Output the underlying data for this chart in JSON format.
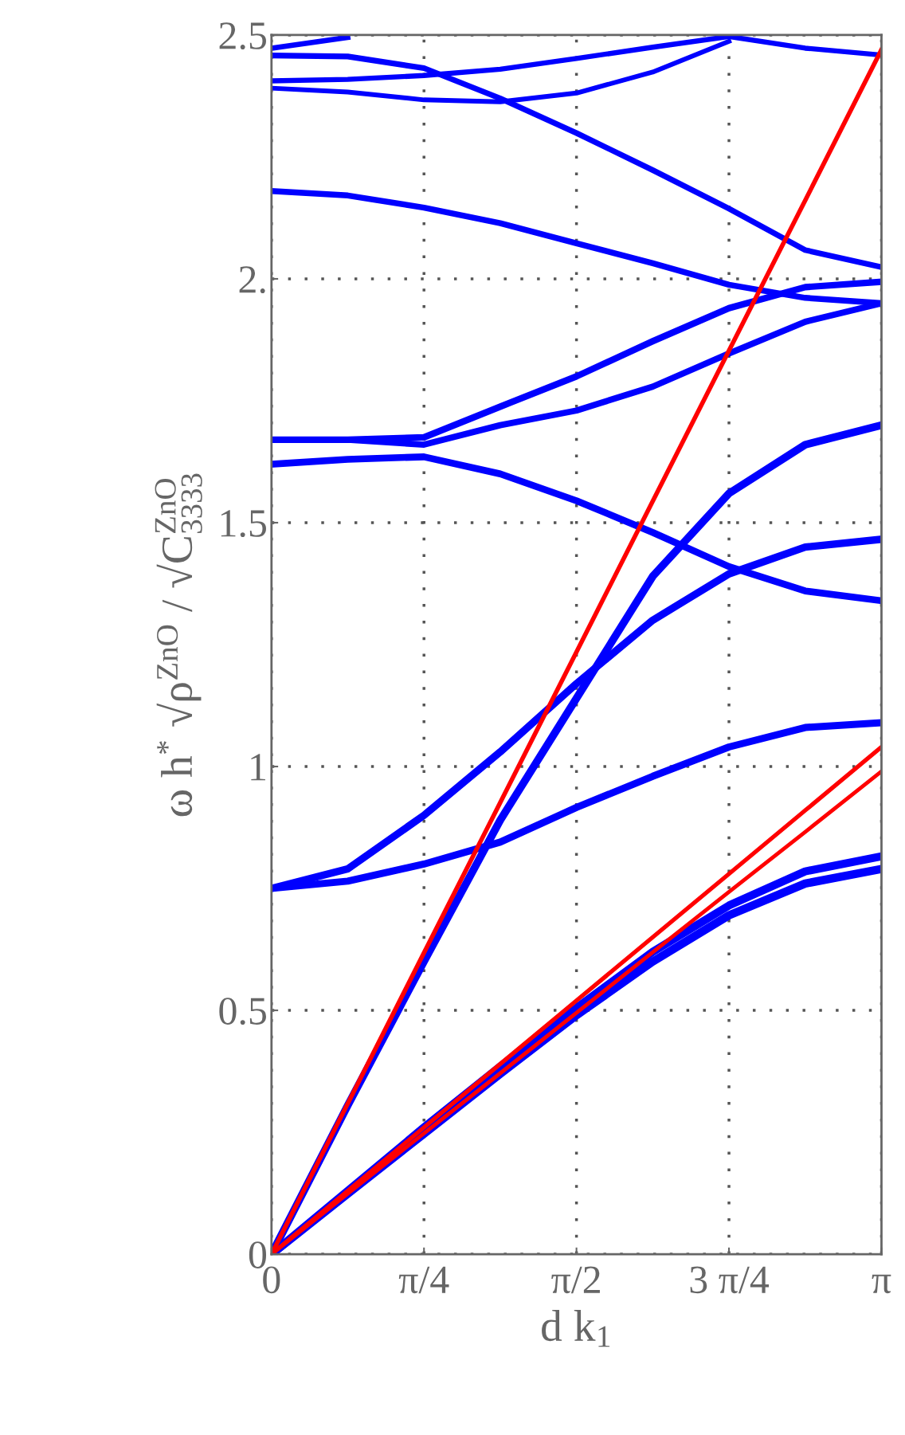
{
  "chart_data": {
    "type": "line",
    "xlabel": "d k$_{1}$",
    "ylabel": "ω h$^{*}$ √ρ$^{ZnO}$ / √C$^{ZnO}$$_{3333}$",
    "x": [
      0,
      0.3927,
      0.7854,
      1.1781,
      1.5708,
      1.9635,
      2.3562,
      2.7489,
      3.1416
    ],
    "xlim": [
      0,
      3.1416
    ],
    "ylim": [
      0,
      2.5
    ],
    "xticks": [
      {
        "value": 0,
        "label": "0"
      },
      {
        "value": 0.7854,
        "label": "π/4"
      },
      {
        "value": 1.5708,
        "label": "π/2"
      },
      {
        "value": 2.3562,
        "label": "3 π/4"
      },
      {
        "value": 3.1416,
        "label": "π"
      }
    ],
    "yticks": [
      {
        "value": 0,
        "label": "0"
      },
      0.5,
      {
        "value": 1,
        "label": "1"
      },
      1.5,
      {
        "value": 2,
        "label": "2."
      },
      2.5
    ],
    "grid": true,
    "marker": "none",
    "line_style": "solid",
    "series": [
      {
        "color": "#0000ff",
        "values": [
          0,
          0.124,
          0.247,
          0.37,
          0.49,
          0.6,
          0.695,
          0.76,
          0.79
        ]
      },
      {
        "color": "#0000ff",
        "values": [
          0,
          0.13,
          0.26,
          0.385,
          0.505,
          0.62,
          0.715,
          0.785,
          0.816
        ]
      },
      {
        "color": "#0000ff",
        "values": [
          0,
          0.305,
          0.6,
          0.89,
          1.14,
          1.39,
          1.56,
          1.66,
          1.7
        ]
      },
      {
        "color": "#0000ff",
        "values": [
          0.75,
          0.79,
          0.9,
          1.03,
          1.17,
          1.3,
          1.395,
          1.45,
          1.466
        ]
      },
      {
        "color": "#0000ff",
        "values": [
          0.75,
          0.765,
          0.8,
          0.845,
          0.916,
          0.98,
          1.04,
          1.08,
          1.09
        ]
      },
      {
        "color": "#0000ff",
        "values": [
          1.62,
          1.63,
          1.635,
          1.6,
          1.545,
          1.48,
          1.41,
          1.36,
          1.34
        ]
      },
      {
        "color": "#0000ff",
        "values": [
          1.67,
          1.67,
          1.675,
          1.738,
          1.8,
          1.872,
          1.94,
          1.983,
          1.994
        ]
      },
      {
        "color": "#0000ff",
        "values": [
          1.67,
          1.67,
          1.66,
          1.7,
          1.73,
          1.779,
          1.847,
          1.912,
          1.95
        ]
      },
      {
        "color": "#0000ff",
        "values": [
          2.18,
          2.171,
          2.146,
          2.114,
          2.073,
          2.032,
          1.988,
          1.961,
          1.95
        ]
      },
      {
        "color": "#0000ff",
        "values": [
          2.458,
          2.456,
          2.432,
          2.37,
          2.299,
          2.223,
          2.144,
          2.059,
          2.024
        ]
      },
      {
        "color": "#0000ff",
        "values": [
          2.473,
          2.495,
          null,
          null,
          null,
          null,
          null,
          null,
          null
        ]
      },
      {
        "color": "#0000ff",
        "values": [
          2.406,
          2.409,
          2.417,
          2.43,
          2.452,
          2.475,
          2.497,
          2.473,
          2.459
        ]
      },
      {
        "color": "#0000ff",
        "values": [
          2.391,
          2.383,
          2.367,
          2.363,
          2.381,
          2.424,
          2.487,
          null,
          null
        ]
      },
      {
        "color": "#ff0000",
        "values": [
          0,
          0.309,
          0.618,
          0.926,
          1.235,
          1.544,
          1.853,
          2.161,
          2.47
        ]
      },
      {
        "color": "#ff0000",
        "values": [
          0,
          0.13,
          0.26,
          0.39,
          0.52,
          0.65,
          0.78,
          0.91,
          1.04
        ]
      },
      {
        "color": "#ff0000",
        "values": [
          0,
          0.124,
          0.248,
          0.371,
          0.495,
          0.619,
          0.743,
          0.866,
          0.99
        ]
      }
    ]
  }
}
